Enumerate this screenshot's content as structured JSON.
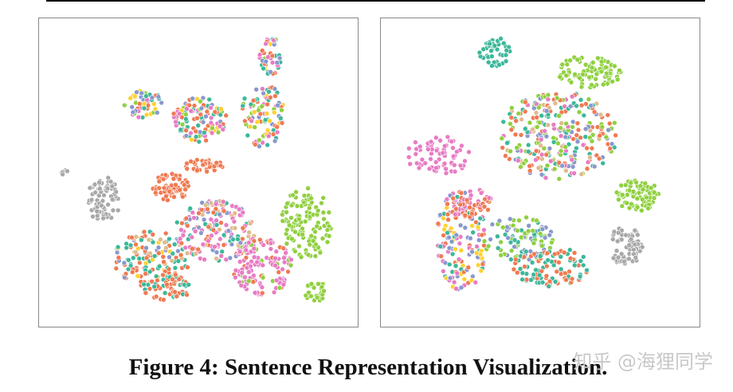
{
  "figure": {
    "caption": "Figure 4: Sentence Representation Visualization."
  },
  "watermark": "知乎 @海狸同学"
}
